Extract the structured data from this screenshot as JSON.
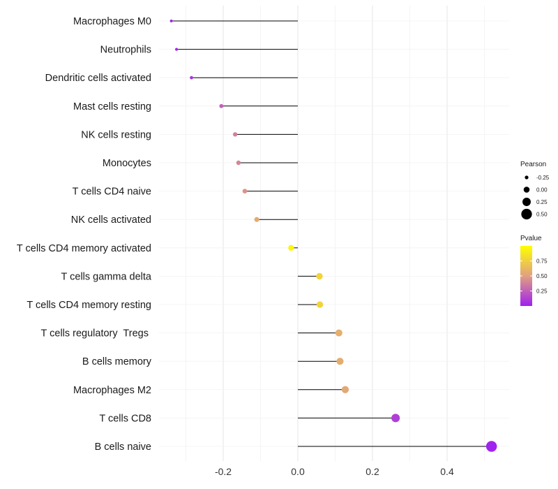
{
  "chart_data": {
    "type": "lollipop",
    "title": "",
    "xlabel": "",
    "ylabel": "",
    "xlim": [
      -0.34,
      0.52
    ],
    "x_ticks": [
      {
        "value": -0.2,
        "label": "-0.2"
      },
      {
        "value": 0.0,
        "label": "0.0"
      },
      {
        "value": 0.2,
        "label": "0.2"
      },
      {
        "value": 0.4,
        "label": "0.4"
      }
    ],
    "categories": [
      "Macrophages M0",
      "Neutrophils",
      "Dendritic cells activated",
      "Mast cells resting",
      "NK cells resting",
      "Monocytes",
      "T cells CD4 naive",
      "NK cells activated",
      "T cells CD4 memory activated",
      "T cells gamma delta",
      "T cells CD4 memory resting",
      "T cells regulatory  Tregs ",
      "B cells memory",
      "Macrophages M2",
      "T cells CD8",
      "B cells naive"
    ],
    "pearson": [
      -0.339,
      -0.325,
      -0.285,
      -0.205,
      -0.168,
      -0.159,
      -0.142,
      -0.11,
      -0.018,
      0.058,
      0.059,
      0.11,
      0.113,
      0.127,
      0.262,
      0.519
    ],
    "pvalue": [
      0.02,
      0.03,
      0.08,
      0.26,
      0.38,
      0.4,
      0.45,
      0.56,
      0.95,
      0.78,
      0.78,
      0.58,
      0.57,
      0.54,
      0.12,
      0.01
    ],
    "size_legend": {
      "title": "Pearson",
      "values": [
        -0.25,
        0.0,
        0.25,
        0.5
      ],
      "labels": [
        "-0.25",
        "0.00",
        "0.25",
        "0.50"
      ]
    },
    "color_legend": {
      "title": "Pvalue",
      "ticks": [
        0.75,
        0.5,
        0.25
      ],
      "labels": [
        "0.75",
        "0.50",
        "0.25"
      ],
      "range": [
        0.0,
        1.0
      ],
      "low_color": "#a020f0",
      "mid_color": "#e0a080",
      "high_color": "#ffff00"
    },
    "grid": true,
    "segment_color": "#000000"
  }
}
